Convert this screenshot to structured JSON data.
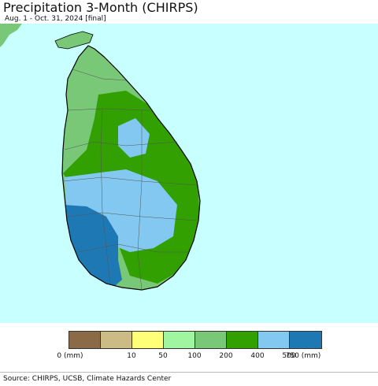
{
  "header": {
    "title": "Precipitation 3-Month (CHIRPS)",
    "subtitle": "Aug. 1 - Oct. 31, 2024 [final]"
  },
  "legend": {
    "bins": [
      {
        "color": "#8b6b47"
      },
      {
        "color": "#cdbb86"
      },
      {
        "color": "#ffff78"
      },
      {
        "color": "#a0f5a0"
      },
      {
        "color": "#78c878"
      },
      {
        "color": "#32a000"
      },
      {
        "color": "#82c8f0"
      },
      {
        "color": "#1e78b4"
      }
    ],
    "labels": [
      "0 (mm)",
      "10",
      "50",
      "100",
      "200",
      "400",
      "500",
      "750 (mm)"
    ]
  },
  "map": {
    "ocean_color": "#c8ffff",
    "land_colors": {
      "north": "#78c878",
      "central": "#32a000",
      "highlands": "#82c8f0",
      "southwest": "#1e78b4"
    }
  },
  "footer": {
    "source": "Source: CHIRPS, UCSB, Climate Hazards Center"
  }
}
